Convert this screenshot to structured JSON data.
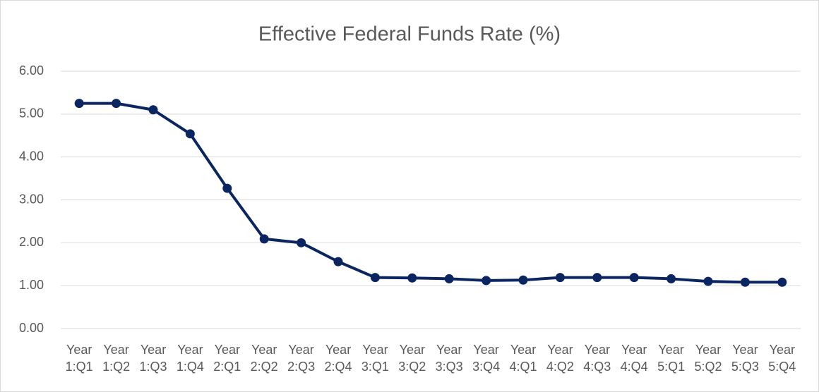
{
  "chart_data": {
    "type": "line",
    "title": "Effective Federal Funds Rate (%)",
    "categories": [
      "Year 1:Q1",
      "Year 1:Q2",
      "Year 1:Q3",
      "Year 1:Q4",
      "Year 2:Q1",
      "Year 2:Q2",
      "Year 2:Q3",
      "Year 2:Q4",
      "Year 3:Q1",
      "Year 3:Q2",
      "Year 3:Q3",
      "Year 3:Q4",
      "Year 4:Q1",
      "Year 4:Q2",
      "Year 4:Q3",
      "Year 4:Q4",
      "Year 5:Q1",
      "Year 5:Q2",
      "Year 5:Q3",
      "Year 5:Q4"
    ],
    "values": [
      5.25,
      5.25,
      5.1,
      4.54,
      3.27,
      2.09,
      2.0,
      1.56,
      1.19,
      1.18,
      1.16,
      1.12,
      1.13,
      1.19,
      1.19,
      1.19,
      1.16,
      1.1,
      1.08,
      1.08
    ],
    "color": "#0b2560",
    "ylim": [
      0,
      6
    ],
    "yticks": [
      {
        "value": 0,
        "label": "0.00"
      },
      {
        "value": 1,
        "label": "1.00"
      },
      {
        "value": 2,
        "label": "2.00"
      },
      {
        "value": 3,
        "label": "3.00"
      },
      {
        "value": 4,
        "label": "4.00"
      },
      {
        "value": 5,
        "label": "5.00"
      },
      {
        "value": 6,
        "label": "6.00"
      }
    ],
    "grid": true
  }
}
